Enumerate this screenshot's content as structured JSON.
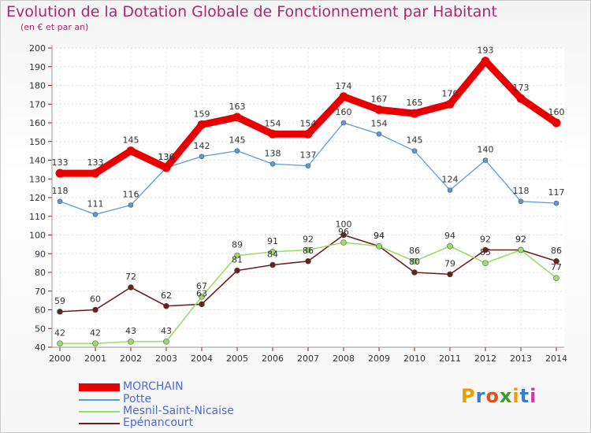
{
  "title": "Evolution de la Dotation Globale de Fonctionnement par Habitant",
  "subtitle": "(en € et par an)",
  "logo": {
    "text": "Proxiti",
    "colors": [
      "#e8a000",
      "#3a7ad8",
      "#e84c1c",
      "#3a9a2a",
      "#e8a000",
      "#3a7ad8",
      "#d03aa0"
    ]
  },
  "chart_data": {
    "type": "line",
    "categories": [
      "2000",
      "2001",
      "2002",
      "2003",
      "2004",
      "2005",
      "2006",
      "2007",
      "2008",
      "2009",
      "2010",
      "2011",
      "2012",
      "2013",
      "2014"
    ],
    "ylim": [
      40,
      200
    ],
    "yticks": [
      40,
      50,
      60,
      70,
      80,
      90,
      100,
      110,
      120,
      130,
      140,
      150,
      160,
      170,
      180,
      190,
      200
    ],
    "grid": true,
    "legend_position": "bottom-left",
    "series": [
      {
        "name": "MORCHAIN",
        "color": "#e80000",
        "values": [
          133,
          133,
          145,
          136,
          159,
          163,
          154,
          154,
          174,
          167,
          165,
          170,
          193,
          173,
          160
        ]
      },
      {
        "name": "Potte",
        "color": "#5b9bd5",
        "values": [
          118,
          111,
          116,
          136,
          142,
          145,
          138,
          137,
          160,
          154,
          145,
          124,
          140,
          118,
          117
        ]
      },
      {
        "name": "Mesnil-Saint-Nicaise",
        "color": "#99dd66",
        "values": [
          42,
          42,
          43,
          43,
          67,
          89,
          91,
          92,
          96,
          94,
          86,
          94,
          85,
          92,
          77
        ]
      },
      {
        "name": "Epénancourt",
        "color": "#6b1f1f",
        "values": [
          59,
          60,
          72,
          62,
          63,
          81,
          84,
          86,
          100,
          94,
          80,
          79,
          92,
          92,
          86
        ]
      }
    ]
  }
}
